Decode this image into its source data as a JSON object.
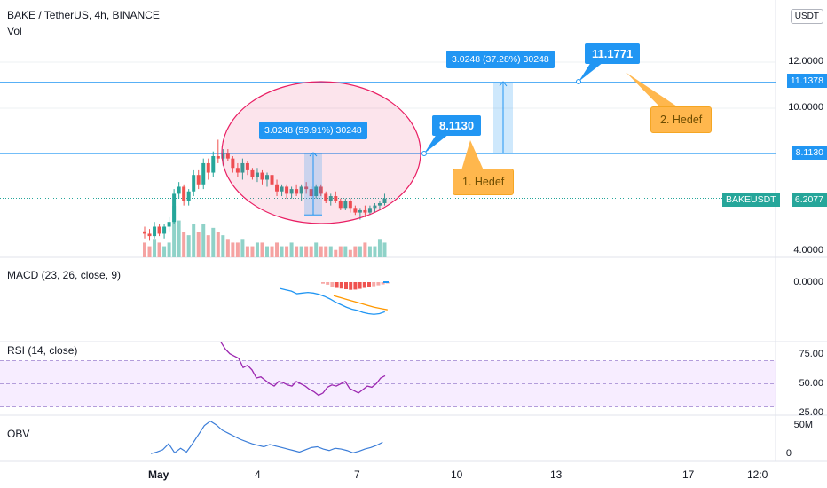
{
  "header": {
    "symbol_line": "BAKE / TetherUS, 4h, BINANCE",
    "vol_label": "Vol",
    "currency": "USDT"
  },
  "colors": {
    "up": "#26a69a",
    "down": "#ef5350",
    "up_vol": "#8fd2c8",
    "down_vol": "#f5a3a2",
    "accent": "#2196f3",
    "ellipse": "#e91e63",
    "rsi": "#9c27b0",
    "macd_signal": "#ff9800",
    "note": "#ffb74d",
    "grid": "#eef0f3"
  },
  "main_pane": {
    "y_ticks": [
      "12.0000",
      "10.0000",
      "4.0000"
    ],
    "current_price": "6.2077",
    "symbol_tag": "BAKEUSDT",
    "levels": [
      {
        "value": 11.1378,
        "label": "11.1378"
      },
      {
        "value": 8.113,
        "label": "8.1130"
      }
    ],
    "callouts": [
      "11.1771",
      "8.1130"
    ],
    "range_labels": [
      "3.0248 (37.28%) 30248",
      "3.0248 (59.91%) 30248"
    ],
    "notes": [
      "2. Hedef",
      "1. Hedef"
    ]
  },
  "macd_pane": {
    "label": "MACD (23, 26, close, 9)",
    "y_ticks": [
      "0.0000"
    ]
  },
  "rsi_pane": {
    "label": "RSI (14, close)",
    "y_ticks": [
      "75.00",
      "50.00",
      "25.00"
    ]
  },
  "obv_pane": {
    "label": "OBV",
    "y_ticks": [
      "50M",
      "0"
    ]
  },
  "x_axis": {
    "labels": [
      "May",
      "4",
      "7",
      "10",
      "13",
      "17",
      "12:0"
    ]
  },
  "chart_data": {
    "type": "candlestick",
    "title": "BAKE / TetherUS, 4h, BINANCE",
    "ohlc": [
      [
        4.8,
        5.0,
        4.5,
        4.7
      ],
      [
        4.7,
        4.9,
        4.4,
        4.6
      ],
      [
        4.6,
        5.2,
        4.5,
        5.0
      ],
      [
        5.0,
        5.1,
        4.6,
        4.7
      ],
      [
        4.7,
        5.1,
        4.5,
        5.0
      ],
      [
        5.0,
        5.4,
        4.8,
        5.2
      ],
      [
        5.2,
        6.6,
        5.1,
        6.4
      ],
      [
        6.4,
        6.9,
        6.2,
        6.7
      ],
      [
        6.7,
        6.8,
        5.9,
        6.1
      ],
      [
        6.1,
        6.6,
        5.9,
        6.5
      ],
      [
        6.5,
        7.4,
        6.3,
        7.2
      ],
      [
        7.2,
        7.4,
        6.6,
        6.8
      ],
      [
        6.8,
        7.9,
        6.6,
        7.7
      ],
      [
        7.7,
        7.9,
        7.0,
        7.3
      ],
      [
        7.3,
        8.2,
        7.1,
        8.0
      ],
      [
        8.0,
        8.7,
        7.7,
        7.9
      ],
      [
        7.9,
        8.3,
        7.6,
        8.1
      ],
      [
        8.1,
        8.3,
        7.8,
        7.9
      ],
      [
        7.9,
        8.0,
        7.3,
        7.5
      ],
      [
        7.5,
        7.7,
        7.1,
        7.3
      ],
      [
        7.3,
        7.9,
        7.0,
        7.7
      ],
      [
        7.7,
        7.8,
        7.2,
        7.4
      ],
      [
        7.4,
        7.5,
        7.0,
        7.1
      ],
      [
        7.1,
        7.5,
        6.9,
        7.3
      ],
      [
        7.3,
        7.4,
        6.8,
        7.0
      ],
      [
        7.0,
        7.3,
        6.7,
        7.2
      ],
      [
        7.2,
        7.3,
        6.7,
        6.8
      ],
      [
        6.8,
        7.0,
        6.3,
        6.5
      ],
      [
        6.5,
        6.8,
        6.3,
        6.7
      ],
      [
        6.7,
        6.8,
        6.2,
        6.4
      ],
      [
        6.4,
        6.7,
        6.2,
        6.6
      ],
      [
        6.6,
        6.8,
        6.3,
        6.4
      ],
      [
        6.4,
        6.8,
        6.1,
        6.7
      ],
      [
        6.7,
        6.9,
        6.4,
        6.6
      ],
      [
        6.6,
        6.7,
        6.2,
        6.3
      ],
      [
        6.3,
        6.8,
        6.2,
        6.7
      ],
      [
        6.7,
        6.8,
        6.3,
        6.4
      ],
      [
        6.4,
        6.5,
        6.0,
        6.1
      ],
      [
        6.1,
        6.4,
        5.9,
        6.3
      ],
      [
        6.3,
        6.5,
        6.0,
        6.1
      ],
      [
        6.1,
        6.2,
        5.7,
        5.8
      ],
      [
        5.8,
        6.2,
        5.7,
        6.1
      ],
      [
        6.1,
        6.2,
        5.6,
        5.8
      ],
      [
        5.8,
        5.9,
        5.5,
        5.6
      ],
      [
        5.6,
        5.8,
        5.3,
        5.7
      ],
      [
        5.7,
        5.9,
        5.4,
        5.6
      ],
      [
        5.6,
        5.9,
        5.5,
        5.8
      ],
      [
        5.8,
        6.0,
        5.6,
        5.9
      ],
      [
        5.9,
        6.1,
        5.7,
        6.0
      ],
      [
        6.0,
        6.4,
        5.9,
        6.2
      ]
    ],
    "volume": [
      4,
      3,
      5,
      4,
      3,
      4,
      14,
      10,
      7,
      6,
      9,
      7,
      9,
      6,
      8,
      7,
      6,
      5,
      4,
      4,
      5,
      3,
      3,
      4,
      4,
      3,
      3,
      4,
      3,
      3,
      4,
      3,
      3,
      3,
      3,
      4,
      3,
      3,
      3,
      2,
      3,
      3,
      2,
      3,
      3,
      4,
      3,
      3,
      5,
      4
    ],
    "macd_hist": [
      -0.12,
      -0.2,
      -0.35,
      -0.45,
      -0.5,
      -0.55,
      -0.6,
      -0.58,
      -0.52,
      -0.45,
      -0.38,
      -0.32,
      -0.25,
      -0.18,
      -0.1
    ],
    "macd_line": [
      -0.5,
      -0.6,
      -0.7,
      -0.9,
      -0.85,
      -0.8,
      -0.85,
      -0.95,
      -1.1,
      -1.3,
      -1.55,
      -1.75,
      -1.95,
      -2.1,
      -2.2,
      -2.35,
      -2.45,
      -2.5,
      -2.45,
      -2.3
    ],
    "signal_line": [
      -1.05,
      -1.2,
      -1.35,
      -1.5,
      -1.65,
      -1.8,
      -1.95,
      -2.05,
      -2.15
    ],
    "rsi": [
      86,
      80,
      76,
      74,
      72,
      64,
      66,
      62,
      55,
      56,
      53,
      50,
      48,
      52,
      51,
      49,
      48,
      52,
      50,
      48,
      45,
      43,
      40,
      42,
      47,
      49,
      48,
      50,
      52,
      46,
      44,
      42,
      45,
      48,
      47,
      50,
      55,
      57
    ],
    "obv": [
      1,
      3,
      6,
      14,
      2,
      8,
      3,
      14,
      26,
      38,
      44,
      39,
      32,
      28,
      24,
      20,
      17,
      14,
      12,
      10,
      13,
      11,
      9,
      7,
      5,
      3,
      6,
      9,
      10,
      7,
      5,
      8,
      7,
      5,
      2,
      4,
      7,
      9,
      12,
      16
    ]
  }
}
